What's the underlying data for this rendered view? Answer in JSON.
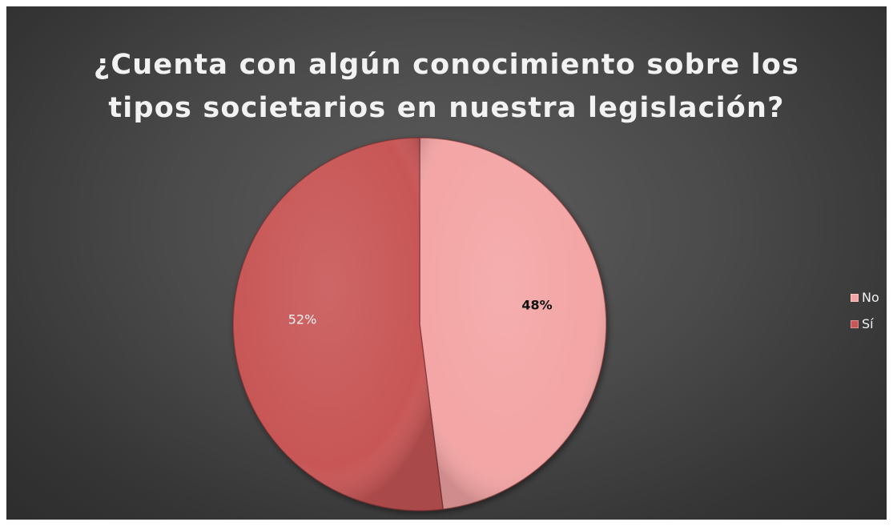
{
  "chart_data": {
    "type": "pie",
    "title_lines": [
      "¿Cuenta con algún conocimiento sobre los",
      "tipos societarios en nuestra legislación?"
    ],
    "slices": [
      {
        "name": "No",
        "value": 48,
        "label": "48%",
        "color": "#f4a5a5",
        "label_color": "#111111"
      },
      {
        "name": "Sí",
        "value": 52,
        "label": "52%",
        "color": "#c85656",
        "label_color": "#f2f2f2"
      }
    ],
    "legend": {
      "placement": "right",
      "items": [
        "No",
        "Sí"
      ]
    },
    "background_color": "#474747"
  }
}
